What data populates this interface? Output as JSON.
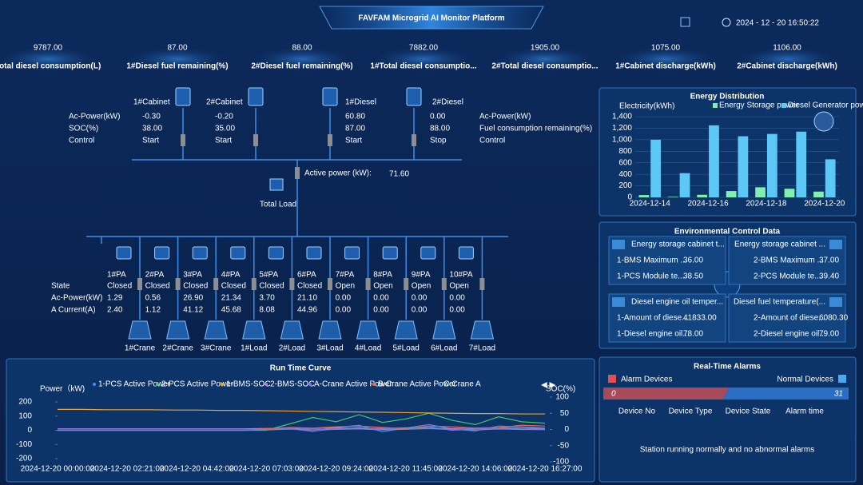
{
  "header": {
    "title": "FAVFAM Microgrid AI Monitor Platform",
    "datetime": "2024 - 12 - 20 16:50:22"
  },
  "kpis": [
    {
      "value": "9787.00",
      "label": "Total diesel consumption(L)"
    },
    {
      "value": "87.00",
      "label": "1#Diesel fuel remaining(%)"
    },
    {
      "value": "88.00",
      "label": "2#Diesel fuel remaining(%)"
    },
    {
      "value": "7882.00",
      "label": "1#Total diesel consumptio..."
    },
    {
      "value": "1905.00",
      "label": "2#Total diesel consumptio..."
    },
    {
      "value": "1075.00",
      "label": "1#Cabinet discharge(kWh)"
    },
    {
      "value": "1106.00",
      "label": "2#Cabinet discharge(kWh)"
    }
  ],
  "sources": {
    "left_labels": [
      "Ac-Power(kW)",
      "SOC(%)",
      "Control"
    ],
    "right_labels": [
      "Ac-Power(kW)",
      "Fuel consumption remaining(%)",
      "Control"
    ],
    "items": [
      {
        "name": "1#Cabinet",
        "power": "-0.30",
        "level": "38.00",
        "control": "Start"
      },
      {
        "name": "2#Cabinet",
        "power": "-0.20",
        "level": "35.00",
        "control": "Start"
      },
      {
        "name": "1#Diesel",
        "power": "60.80",
        "level": "87.00",
        "control": "Start"
      },
      {
        "name": "2#Diesel",
        "power": "0.00",
        "level": "88.00",
        "control": "Stop"
      }
    ]
  },
  "bus": {
    "label": "Active power (kW):",
    "value": "71.60",
    "load": "Total Load"
  },
  "feeders": {
    "labels": [
      "State",
      "Ac-Power(kW)",
      "A Current(A)"
    ],
    "items": [
      {
        "name": "1#PA",
        "state": "Closed",
        "power": "1.29",
        "current": "2.40"
      },
      {
        "name": "2#PA",
        "state": "Closed",
        "power": "0.56",
        "current": "1.12"
      },
      {
        "name": "3#PA",
        "state": "Closed",
        "power": "26.90",
        "current": "41.12"
      },
      {
        "name": "4#PA",
        "state": "Closed",
        "power": "21.34",
        "current": "45.68"
      },
      {
        "name": "5#PA",
        "state": "Closed",
        "power": "3.70",
        "current": "8.08"
      },
      {
        "name": "6#PA",
        "state": "Closed",
        "power": "21.10",
        "current": "44.96"
      },
      {
        "name": "7#PA",
        "state": "Open",
        "power": "0.00",
        "current": "0.00"
      },
      {
        "name": "8#PA",
        "state": "Open",
        "power": "0.00",
        "current": "0.00"
      },
      {
        "name": "9#PA",
        "state": "Open",
        "power": "0.00",
        "current": "0.00"
      },
      {
        "name": "10#PA",
        "state": "Open",
        "power": "0.00",
        "current": "0.00"
      }
    ],
    "loads": [
      "1#Crane",
      "2#Crane",
      "3#Crane",
      "1#Load",
      "2#Load",
      "3#Load",
      "4#Load",
      "5#Load",
      "6#Load",
      "7#Load"
    ]
  },
  "environment": {
    "title": "Environmental Control Data",
    "cards": [
      {
        "title": "Energy storage cabinet t...",
        "rows": [
          {
            "label": "1-BMS Maximum ...",
            "value": "36.00"
          },
          {
            "label": "1-PCS Module te...",
            "value": "38.50"
          }
        ]
      },
      {
        "title": "Energy storage cabinet ...",
        "rows": [
          {
            "label": "2-BMS Maximum ...",
            "value": "37.00"
          },
          {
            "label": "2-PCS Module te...",
            "value": "39.40"
          }
        ]
      },
      {
        "title": "Diesel engine oil temper...",
        "rows": [
          {
            "label": "1-Amount of diese...",
            "value": "41833.00"
          },
          {
            "label": "1-Diesel engine oil...",
            "value": "78.00"
          }
        ]
      },
      {
        "title": "Diesel fuel temperature(...",
        "rows": [
          {
            "label": "2-Amount of diese...",
            "value": "6080.30"
          },
          {
            "label": "2-Diesel engine oil...",
            "value": "79.00"
          }
        ]
      }
    ]
  },
  "alarms": {
    "title": "Real-Time Alarms",
    "alarm_label": "Alarm Devices",
    "normal_label": "Normal Devices",
    "alarm_count": 0,
    "normal_count": 31,
    "columns": [
      "Device No",
      "Device Type",
      "Device State",
      "Alarm time"
    ],
    "message": "Station running normally and no abnormal alarms"
  },
  "chart_data": [
    {
      "type": "bar",
      "title": "Energy Distribution",
      "y_label": "Electricity(kWh)",
      "categories": [
        "2024-12-14",
        null,
        "2024-12-16",
        null,
        "2024-12-18",
        null,
        "2024-12-20"
      ],
      "series": [
        {
          "name": "Energy Storage power",
          "color": "#7ff0b0",
          "values": [
            40,
            10,
            45,
            110,
            175,
            150,
            100
          ]
        },
        {
          "name": "Diesel Generator power",
          "color": "#5cc8f5",
          "values": [
            1000,
            420,
            1250,
            1060,
            1100,
            1140,
            660
          ]
        }
      ],
      "ylim": [
        0,
        1400
      ],
      "yticks": [
        0,
        200,
        400,
        600,
        800,
        {
          "value": 1000,
          "label": "1,000"
        },
        {
          "value": 1200,
          "label": "1,200"
        },
        {
          "value": 1400,
          "label": "1,400"
        }
      ],
      "grid": true
    },
    {
      "type": "line",
      "title": "Run Time Curve",
      "y_label": "Power（kW)",
      "y2_label": "SOC(%)",
      "x": [
        "2024-12-20 00:00:00",
        null,
        null,
        "2024-12-20 02:21:00",
        null,
        null,
        "2024-12-20 04:42:00",
        null,
        null,
        "2024-12-20 07:03:00",
        null,
        null,
        "2024-12-20 09:24:00",
        null,
        null,
        "2024-12-20 11:45:00",
        null,
        null,
        "2024-12-20 14:06:00",
        null,
        null,
        "2024-12-20 16:27:00"
      ],
      "series": [
        {
          "name": "1-PCS Active Power",
          "color": "#4a90e2",
          "values": [
            0,
            0,
            0,
            0,
            0,
            0,
            0,
            0,
            0,
            5,
            12,
            -8,
            20,
            35,
            -10,
            15,
            40,
            10,
            -5,
            30,
            25,
            15
          ]
        },
        {
          "name": "2-PCS Active Power",
          "color": "#47c36d",
          "values": [
            0,
            0,
            0,
            0,
            0,
            0,
            0,
            0,
            0,
            0,
            45,
            90,
            60,
            110,
            55,
            80,
            120,
            70,
            40,
            95,
            60,
            50
          ]
        },
        {
          "name": "1-BMS-SOC",
          "color": "#f0a030",
          "axis": "y2",
          "values": [
            62,
            62,
            61,
            61,
            61,
            60,
            60,
            59,
            59,
            58,
            57,
            56,
            55,
            54,
            53,
            52,
            51,
            50,
            49,
            49,
            48,
            48
          ]
        },
        {
          "name": "2-BMS-SOC",
          "color": "#b07ee8",
          "axis": "y2",
          "values": [
            2,
            2,
            2,
            2,
            2,
            2,
            2,
            2,
            2,
            3,
            4,
            3,
            5,
            4,
            3,
            5,
            4,
            3,
            4,
            5,
            4,
            3
          ]
        },
        {
          "name": "A-Crane Active Power",
          "color": "#8e66e6",
          "values": [
            0,
            0,
            0,
            0,
            0,
            0,
            0,
            0,
            0,
            5,
            15,
            -5,
            10,
            20,
            5,
            10,
            25,
            0,
            10,
            15,
            5,
            10
          ]
        },
        {
          "name": "B-Crane Active Power",
          "color": "#e8643c",
          "values": [
            0,
            0,
            0,
            0,
            0,
            0,
            0,
            0,
            0,
            10,
            20,
            15,
            25,
            30,
            20,
            10,
            30,
            25,
            15,
            20,
            35,
            30
          ]
        },
        {
          "name": "C-Crane A",
          "color": "#5b8fd6",
          "values": [
            0,
            0,
            0,
            0,
            0,
            0,
            0,
            0,
            0,
            2,
            8,
            4,
            6,
            10,
            3,
            7,
            12,
            5,
            2,
            9,
            6,
            4
          ]
        }
      ],
      "ylim": [
        -200,
        200
      ],
      "yticks": [
        -200,
        -100,
        0,
        100,
        200
      ],
      "y2lim": [
        -100,
        100
      ],
      "y2ticks": [
        -100,
        -50,
        0,
        50,
        100
      ]
    }
  ]
}
